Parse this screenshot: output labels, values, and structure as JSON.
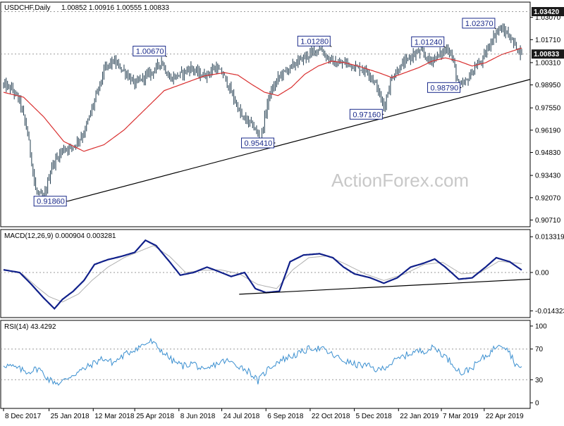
{
  "chart_data": [
    {
      "type": "bar",
      "title": "USDCHF,Daily",
      "ohlc": "1.00852 1.00916 1.00555 1.00833",
      "last_price": "1.00833",
      "ref_level": "1.03420",
      "ylim": [
        0.903,
        1.04
      ],
      "y_ticks": [
        "1.03070",
        "1.01710",
        "1.00310",
        "0.98950",
        "0.97550",
        "0.96190",
        "0.94830",
        "0.93430",
        "0.92070",
        "0.90710"
      ],
      "y_tick_values": [
        1.0307,
        1.0171,
        1.0031,
        0.9895,
        0.9755,
        0.9619,
        0.9483,
        0.9343,
        0.9207,
        0.9071
      ],
      "price_anchors": [
        [
          0,
          0.9895
        ],
        [
          6,
          0.987
        ],
        [
          12,
          0.98
        ],
        [
          18,
          0.96
        ],
        [
          24,
          0.925
        ],
        [
          30,
          0.92
        ],
        [
          36,
          0.94
        ],
        [
          44,
          0.95
        ],
        [
          52,
          0.952
        ],
        [
          60,
          0.96
        ],
        [
          68,
          0.98
        ],
        [
          76,
          1.0
        ],
        [
          82,
          1.004
        ],
        [
          90,
          0.998
        ],
        [
          98,
          0.99
        ],
        [
          106,
          0.995
        ],
        [
          112,
          0.998
        ],
        [
          118,
          1.004
        ],
        [
          124,
          0.993
        ],
        [
          132,
          0.996
        ],
        [
          140,
          1.0
        ],
        [
          148,
          0.995
        ],
        [
          152,
          0.996
        ],
        [
          158,
          1.0
        ],
        [
          164,
          0.996
        ],
        [
          170,
          0.985
        ],
        [
          178,
          0.97
        ],
        [
          186,
          0.965
        ],
        [
          192,
          0.956
        ],
        [
          198,
          0.982
        ],
        [
          206,
          0.995
        ],
        [
          214,
          1.0
        ],
        [
          222,
          1.005
        ],
        [
          230,
          1.009
        ],
        [
          236,
          1.012
        ],
        [
          242,
          1.006
        ],
        [
          248,
          1.002
        ],
        [
          256,
          1.003
        ],
        [
          264,
          1.0
        ],
        [
          272,
          0.998
        ],
        [
          278,
          0.99
        ],
        [
          284,
          0.976
        ],
        [
          290,
          0.994
        ],
        [
          298,
          1.002
        ],
        [
          306,
          1.008
        ],
        [
          312,
          1.01
        ],
        [
          318,
          1.004
        ],
        [
          326,
          1.008
        ],
        [
          332,
          1.012
        ],
        [
          336,
          1.004
        ],
        [
          340,
          0.988
        ],
        [
          346,
          0.992
        ],
        [
          352,
          1.0
        ],
        [
          358,
          1.005
        ],
        [
          364,
          1.016
        ],
        [
          370,
          1.024
        ],
        [
          376,
          1.021
        ],
        [
          382,
          1.014
        ],
        [
          387,
          1.0083
        ]
      ],
      "bar_count": 388,
      "ma_anchors": [
        [
          0,
          0.985
        ],
        [
          15,
          0.982
        ],
        [
          30,
          0.97
        ],
        [
          45,
          0.955
        ],
        [
          60,
          0.949
        ],
        [
          75,
          0.953
        ],
        [
          90,
          0.962
        ],
        [
          105,
          0.974
        ],
        [
          120,
          0.986
        ],
        [
          135,
          0.9905
        ],
        [
          150,
          0.995
        ],
        [
          165,
          0.997
        ],
        [
          175,
          0.9955
        ],
        [
          185,
          0.99
        ],
        [
          195,
          0.985
        ],
        [
          205,
          0.983
        ],
        [
          215,
          0.988
        ],
        [
          225,
          0.996
        ],
        [
          235,
          1.001
        ],
        [
          245,
          1.004
        ],
        [
          255,
          1.003
        ],
        [
          265,
          1.001
        ],
        [
          280,
          0.997
        ],
        [
          290,
          0.994
        ],
        [
          300,
          0.997
        ],
        [
          310,
          1.0
        ],
        [
          320,
          1.004
        ],
        [
          330,
          1.006
        ],
        [
          340,
          1.004
        ],
        [
          350,
          1.001
        ],
        [
          360,
          1.003
        ],
        [
          372,
          1.008
        ],
        [
          387,
          1.012
        ]
      ],
      "callouts": [
        {
          "label": "1.00670",
          "bar": 122,
          "value": 1.0067
        },
        {
          "label": "1.01280",
          "bar": 245,
          "value": 1.0128
        },
        {
          "label": "1.01240",
          "bar": 330,
          "value": 1.0124
        },
        {
          "label": "1.02370",
          "bar": 368,
          "value": 1.0237
        },
        {
          "label": "0.98790",
          "bar": 342,
          "value": 0.9879
        },
        {
          "label": "0.97160",
          "bar": 284,
          "value": 0.9716
        },
        {
          "label": "0.95410",
          "bar": 203,
          "value": 0.9541
        },
        {
          "label": "0.91860",
          "bar": 48,
          "value": 0.9186
        }
      ],
      "trendline": [
        [
          48,
          0.9186
        ],
        [
          387,
          0.992
        ]
      ]
    },
    {
      "type": "line",
      "title": "MACD(12,26,9) 0.000904 0.003281",
      "ylim": [
        -0.0168,
        0.016
      ],
      "y_ticks": [
        "0.013319",
        "0.00",
        "-0.014323"
      ],
      "y_tick_values": [
        0.013319,
        0.0,
        -0.014323
      ],
      "macd_anchors": [
        [
          0,
          0.001
        ],
        [
          12,
          0.0
        ],
        [
          20,
          -0.004
        ],
        [
          30,
          -0.0095
        ],
        [
          38,
          -0.0135
        ],
        [
          44,
          -0.01
        ],
        [
          52,
          -0.007
        ],
        [
          60,
          -0.003
        ],
        [
          68,
          0.003
        ],
        [
          78,
          0.0048
        ],
        [
          88,
          0.006
        ],
        [
          98,
          0.0075
        ],
        [
          106,
          0.012
        ],
        [
          114,
          0.01
        ],
        [
          124,
          0.004
        ],
        [
          132,
          -0.001
        ],
        [
          142,
          0.0
        ],
        [
          152,
          0.002
        ],
        [
          160,
          0.0005
        ],
        [
          170,
          -0.0015
        ],
        [
          180,
          0.0
        ],
        [
          188,
          -0.006
        ],
        [
          196,
          -0.0075
        ],
        [
          206,
          -0.007
        ],
        [
          214,
          0.004
        ],
        [
          224,
          0.0065
        ],
        [
          236,
          0.007
        ],
        [
          246,
          0.0055
        ],
        [
          254,
          0.002
        ],
        [
          262,
          -0.0005
        ],
        [
          274,
          -0.002
        ],
        [
          284,
          -0.004
        ],
        [
          294,
          -0.002
        ],
        [
          304,
          0.002
        ],
        [
          314,
          0.0035
        ],
        [
          322,
          0.005
        ],
        [
          330,
          0.002
        ],
        [
          340,
          -0.0025
        ],
        [
          350,
          -0.002
        ],
        [
          360,
          0.002
        ],
        [
          368,
          0.0055
        ],
        [
          378,
          0.004
        ],
        [
          387,
          0.0009
        ]
      ],
      "signal_anchors": [
        [
          0,
          0.0012
        ],
        [
          14,
          -0.0005
        ],
        [
          24,
          -0.005
        ],
        [
          34,
          -0.009
        ],
        [
          44,
          -0.011
        ],
        [
          56,
          -0.008
        ],
        [
          66,
          -0.003
        ],
        [
          78,
          0.002
        ],
        [
          90,
          0.0055
        ],
        [
          102,
          0.008
        ],
        [
          112,
          0.01
        ],
        [
          124,
          0.006
        ],
        [
          136,
          0.0
        ],
        [
          148,
          0.0008
        ],
        [
          162,
          0.001
        ],
        [
          176,
          -0.0005
        ],
        [
          190,
          -0.0045
        ],
        [
          204,
          -0.006
        ],
        [
          216,
          0.001
        ],
        [
          228,
          0.0055
        ],
        [
          242,
          0.0062
        ],
        [
          256,
          0.003
        ],
        [
          270,
          -0.0005
        ],
        [
          284,
          -0.003
        ],
        [
          300,
          -0.0005
        ],
        [
          314,
          0.003
        ],
        [
          328,
          0.0038
        ],
        [
          342,
          -0.0005
        ],
        [
          356,
          0.0
        ],
        [
          370,
          0.0042
        ],
        [
          387,
          0.0033
        ]
      ],
      "trendline": [
        [
          176,
          -0.0081
        ],
        [
          387,
          -0.0025
        ]
      ]
    },
    {
      "type": "line",
      "title": "RSI(14) 43.4292",
      "ylim": [
        0,
        100
      ],
      "y_ticks": [
        "100",
        "70",
        "30",
        "0"
      ],
      "y_tick_values": [
        100,
        70,
        30,
        0
      ],
      "levels": [
        70,
        30
      ],
      "rsi_anchors": [
        [
          0,
          50
        ],
        [
          10,
          45
        ],
        [
          18,
          40
        ],
        [
          26,
          45
        ],
        [
          34,
          30
        ],
        [
          42,
          25
        ],
        [
          50,
          35
        ],
        [
          58,
          42
        ],
        [
          66,
          50
        ],
        [
          74,
          58
        ],
        [
          82,
          52
        ],
        [
          90,
          62
        ],
        [
          98,
          70
        ],
        [
          104,
          75
        ],
        [
          110,
          80
        ],
        [
          118,
          68
        ],
        [
          126,
          55
        ],
        [
          134,
          48
        ],
        [
          142,
          52
        ],
        [
          150,
          40
        ],
        [
          158,
          50
        ],
        [
          166,
          55
        ],
        [
          176,
          48
        ],
        [
          184,
          40
        ],
        [
          190,
          28
        ],
        [
          198,
          45
        ],
        [
          206,
          55
        ],
        [
          214,
          60
        ],
        [
          222,
          65
        ],
        [
          230,
          72
        ],
        [
          238,
          70
        ],
        [
          246,
          62
        ],
        [
          254,
          55
        ],
        [
          262,
          50
        ],
        [
          272,
          48
        ],
        [
          280,
          42
        ],
        [
          290,
          52
        ],
        [
          298,
          60
        ],
        [
          306,
          66
        ],
        [
          314,
          68
        ],
        [
          322,
          72
        ],
        [
          330,
          60
        ],
        [
          336,
          50
        ],
        [
          342,
          38
        ],
        [
          350,
          46
        ],
        [
          358,
          58
        ],
        [
          364,
          66
        ],
        [
          370,
          78
        ],
        [
          376,
          72
        ],
        [
          382,
          52
        ],
        [
          387,
          43
        ]
      ]
    }
  ],
  "x_axis": {
    "labels": [
      "8 Dec 2017",
      "25 Jan 2018",
      "12 Mar 2018",
      "25 Apr 2018",
      "8 Jun 2018",
      "24 Jul 2018",
      "6 Sep 2018",
      "22 Oct 2018",
      "5 Dec 2018",
      "22 Jan 2019",
      "7 Mar 2019",
      "22 Apr 2019"
    ],
    "label_bars": [
      0,
      34,
      67,
      98,
      131,
      163,
      196,
      229,
      262,
      295,
      327,
      359
    ]
  },
  "watermark": "ActionForex.com",
  "colors": {
    "bars": "#1f3a4d",
    "ma": "#d93030",
    "macd": "#10208a",
    "signal": "#b0b0b0",
    "rsi": "#3a8fd0",
    "callout": "#1a2a8a"
  }
}
